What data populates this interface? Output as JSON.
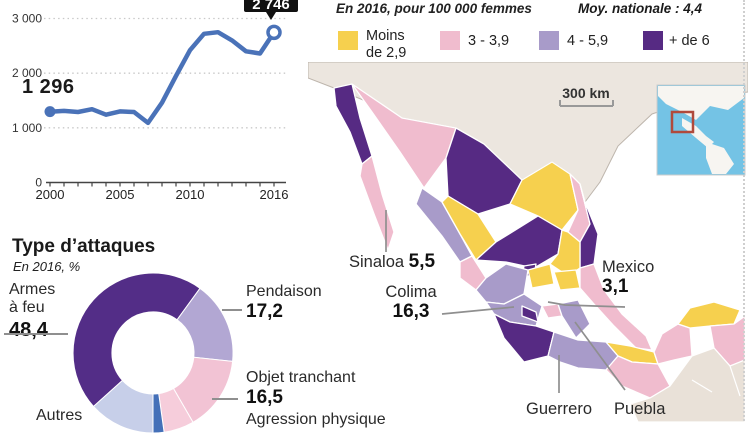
{
  "accent_colors": {
    "line_blue": "#4a72b8",
    "callout_bg": "#111111",
    "sea": "#ffffff",
    "foreign_land": "#ece6df",
    "inset_sea": "#74c3e5",
    "inset_red_box": "#b04a3c"
  },
  "line_chart_labels": {
    "first_label": "1 296",
    "callout_label": "2 746",
    "y_ticks": [
      "3 000",
      "2 000",
      "1 000",
      "0"
    ],
    "x_ticks": [
      "2000",
      "2005",
      "2010",
      "2016"
    ]
  },
  "map": {
    "legend_title": "En 2016, pour 100 000 femmes",
    "national_avg_label": "Moy. nationale : 4,4",
    "scale_label": "300 km",
    "legend": {
      "classes": [
        {
          "id": "c1",
          "label": "Moins de 2,9",
          "label_line1": "Moins",
          "label_line2": "de 2,9",
          "color": "#f6d04e"
        },
        {
          "id": "c2",
          "label": "3 - 3,9",
          "color": "#f0bcce"
        },
        {
          "id": "c3",
          "label": "4 - 5,9",
          "color": "#a89bc9"
        },
        {
          "id": "c4",
          "label": "+ de 6",
          "color": "#562a83"
        }
      ]
    },
    "states": {
      "baja_california": "c4",
      "baja_california_sur": "c2",
      "sonora": "c2",
      "chihuahua": "c4",
      "sinaloa": "c3",
      "durango": "c1",
      "coahuila": "c1",
      "nuevo_leon": "c2",
      "tamaulipas": "c4",
      "zacatecas": "c4",
      "san_luis_potosi": "c1",
      "aguascalientes": "c4",
      "nayarit": "c2",
      "jalisco": "c3",
      "guanajuato": "c1",
      "hidalgo": "c1",
      "michoacan": "c3",
      "colima": "c4",
      "mexico_state": "c2",
      "puebla": "c3",
      "veracruz": "c2",
      "guerrero": "c4",
      "oaxaca": "c3",
      "tabasco": "c1",
      "chiapas": "c2",
      "campeche": "c2",
      "yucatan": "c1",
      "quintana_roo": "c2"
    },
    "callouts": [
      {
        "name": "Sinaloa",
        "value": "5,5"
      },
      {
        "name": "Colima",
        "value": "16,3"
      },
      {
        "name": "Mexico",
        "value": "3,1"
      },
      {
        "name": "Guerrero",
        "value": ""
      },
      {
        "name": "Puebla",
        "value": ""
      }
    ]
  },
  "chart_data": [
    {
      "type": "line",
      "title": "",
      "x": [
        2000,
        2001,
        2002,
        2003,
        2004,
        2005,
        2006,
        2007,
        2008,
        2009,
        2010,
        2011,
        2012,
        2013,
        2014,
        2015,
        2016
      ],
      "values": [
        1296,
        1310,
        1290,
        1340,
        1240,
        1300,
        1290,
        1090,
        1460,
        1950,
        2420,
        2720,
        2750,
        2600,
        2400,
        2360,
        2746
      ],
      "first_value": 1296,
      "last_value": 2746,
      "ylim": [
        0,
        3000
      ],
      "y_tick_values": [
        3000,
        2000,
        1000,
        0
      ],
      "x_tick_values": [
        2000,
        2005,
        2010,
        2016
      ],
      "grid": "dotted-horizontal",
      "line_color": "#4a72b8"
    },
    {
      "type": "pie",
      "title": "Type d’attaques",
      "subtitle": "En 2016, %",
      "slices": [
        {
          "label": "Armes à feu",
          "value_label": "48,4",
          "value": 48.4,
          "color": "#532d87",
          "a0": 228,
          "a1": 396
        },
        {
          "label": "Pendaison",
          "value_label": "17,2",
          "value": 17.2,
          "color": "#b2a7d3",
          "a0": 36,
          "a1": 96
        },
        {
          "label": "Objet tranchant",
          "value_label": "16,5",
          "value": 16.5,
          "color": "#f2c3d4",
          "a0": 96,
          "a1": 150
        },
        {
          "label": "Agression physique",
          "value_label": "",
          "value": null,
          "color": "#f6cddb",
          "a0": 150,
          "a1": 172
        },
        {
          "label": "Autres",
          "value_label": "",
          "value": null,
          "color": "#c7cfe9",
          "a0": 180,
          "a1": 228
        },
        {
          "label": "",
          "value_label": "",
          "value": null,
          "color": "#4470b8",
          "a0": 172,
          "a1": 180
        }
      ]
    },
    {
      "type": "choropleth",
      "title": "En 2016, pour 100 000 femmes",
      "national_average": 4.4,
      "labeled_regions": [
        {
          "name": "Sinaloa",
          "rate": 5.5
        },
        {
          "name": "Colima",
          "rate": 16.3
        },
        {
          "name": "Mexico",
          "rate": 3.1
        },
        {
          "name": "Guerrero",
          "rate": null
        },
        {
          "name": "Puebla",
          "rate": null
        }
      ],
      "classes": [
        "Moins de 2,9",
        "3 - 3,9",
        "4 - 5,9",
        "+ de 6"
      ]
    }
  ]
}
